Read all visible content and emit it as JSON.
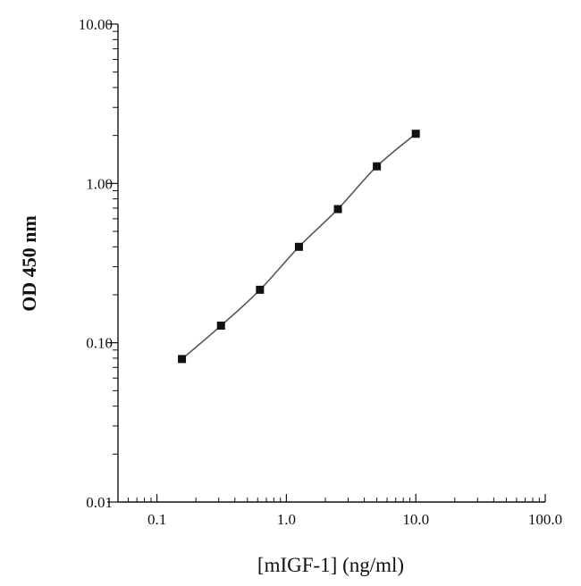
{
  "chart_data": {
    "type": "line",
    "title": "",
    "xlabel": "[mIGF-1] (ng/ml)",
    "ylabel": "OD 450 nm",
    "x_scale": "log",
    "y_scale": "log",
    "xlim": [
      0.05,
      100.0
    ],
    "ylim": [
      0.01,
      10.0
    ],
    "x_ticks": [
      0.1,
      1.0,
      10.0,
      100.0
    ],
    "x_tick_labels": [
      "0.1",
      "1.0",
      "10.0",
      "100.0"
    ],
    "y_ticks": [
      0.01,
      0.1,
      1.0,
      10.0
    ],
    "y_tick_labels": [
      "0.01",
      "0.10",
      "1.00",
      "10.00"
    ],
    "grid": false,
    "series": [
      {
        "x": [
          0.156,
          0.3125,
          0.625,
          1.25,
          2.5,
          5.0,
          10.0
        ],
        "y": [
          0.079,
          0.128,
          0.215,
          0.4,
          0.69,
          1.28,
          2.05
        ]
      }
    ],
    "colors": {
      "line": "#555555",
      "marker": "#111111",
      "axis": "#111111"
    }
  }
}
